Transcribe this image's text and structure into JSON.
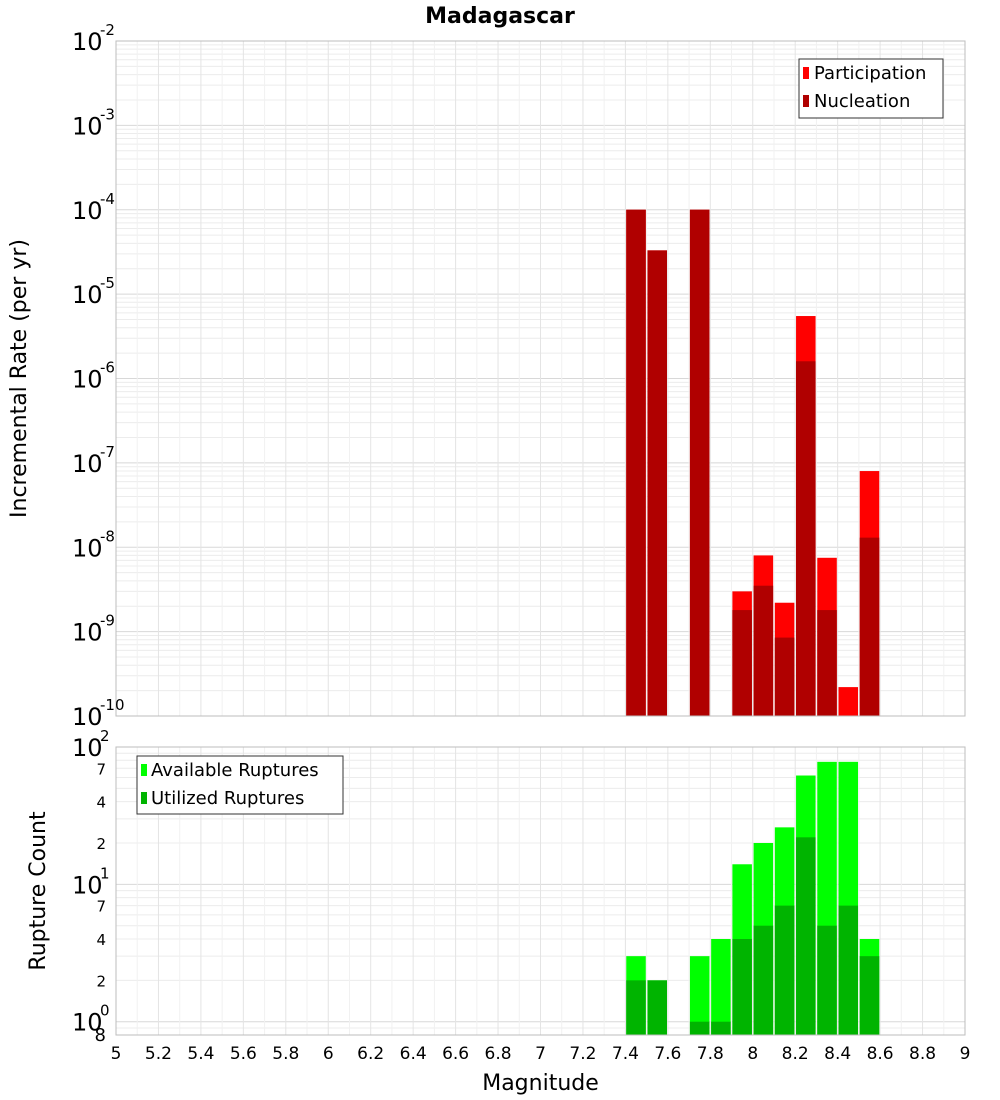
{
  "title": "Madagascar",
  "chart_data": [
    {
      "type": "bar",
      "ylabel": "Incremental Rate (per yr)",
      "yscale": "log",
      "ylim": [
        1e-10,
        0.01
      ],
      "y_ticks": [
        {
          "base": "10",
          "exp": "-2",
          "value": 0.01
        },
        {
          "base": "10",
          "exp": "-3",
          "value": 0.001
        },
        {
          "base": "10",
          "exp": "-4",
          "value": 0.0001
        },
        {
          "base": "10",
          "exp": "-5",
          "value": 1e-05
        },
        {
          "base": "10",
          "exp": "-6",
          "value": 1e-06
        },
        {
          "base": "10",
          "exp": "-7",
          "value": 1e-07
        },
        {
          "base": "10",
          "exp": "-8",
          "value": 1e-08
        },
        {
          "base": "10",
          "exp": "-9",
          "value": 1e-09
        },
        {
          "base": "10",
          "exp": "-10",
          "value": 1e-10
        }
      ],
      "legend_position": "top-right",
      "grid": true,
      "series": [
        {
          "name": "Participation",
          "color": "#ff0000",
          "x": [
            7.45,
            7.55,
            7.75,
            7.95,
            8.05,
            8.15,
            8.25,
            8.35,
            8.45,
            8.55
          ],
          "values": [
            0.0001,
            3.3e-05,
            0.0001,
            3e-09,
            8e-09,
            2.2e-09,
            5.5e-06,
            7.5e-09,
            2.2e-10,
            8e-08
          ]
        },
        {
          "name": "Nucleation",
          "color": "#b00000",
          "x": [
            7.45,
            7.55,
            7.75,
            7.95,
            8.05,
            8.15,
            8.25,
            8.35,
            8.55
          ],
          "values": [
            0.0001,
            3.3e-05,
            0.0001,
            1.8e-09,
            3.5e-09,
            8.5e-10,
            1.6e-06,
            1.8e-09,
            1.3e-08
          ]
        }
      ]
    },
    {
      "type": "bar",
      "ylabel": "Rupture Count",
      "xlabel": "Magnitude",
      "yscale": "log",
      "ylim": [
        0.8,
        100
      ],
      "y_ticks": [
        {
          "base": "10",
          "exp": "2",
          "value": 100
        },
        {
          "base": "10",
          "exp": "1",
          "value": 10
        },
        {
          "base": "10",
          "exp": "0",
          "value": 1
        }
      ],
      "y_minor_labels": [
        {
          "label": "7",
          "value": 70
        },
        {
          "label": "4",
          "value": 40
        },
        {
          "label": "2",
          "value": 20
        },
        {
          "label": "7",
          "value": 7
        },
        {
          "label": "4",
          "value": 4
        },
        {
          "label": "2",
          "value": 2
        },
        {
          "label": "8",
          "value": 0.8
        }
      ],
      "x_ticks": [
        "5",
        "5.2",
        "5.4",
        "5.6",
        "5.8",
        "6",
        "6.2",
        "6.4",
        "6.6",
        "6.8",
        "7",
        "7.2",
        "7.4",
        "7.6",
        "7.8",
        "8",
        "8.2",
        "8.4",
        "8.6",
        "8.8",
        "9"
      ],
      "xlim": [
        5,
        9
      ],
      "legend_position": "top-left",
      "grid": true,
      "series": [
        {
          "name": "Available Ruptures",
          "color": "#00ff00",
          "x": [
            7.45,
            7.55,
            7.75,
            7.85,
            7.95,
            8.05,
            8.15,
            8.25,
            8.35,
            8.45,
            8.55
          ],
          "values": [
            3,
            2,
            3,
            4,
            14,
            20,
            26,
            62,
            78,
            78,
            4
          ]
        },
        {
          "name": "Utilized Ruptures",
          "color": "#00b400",
          "x": [
            7.45,
            7.55,
            7.75,
            7.85,
            7.95,
            8.05,
            8.15,
            8.25,
            8.35,
            8.45,
            8.55
          ],
          "values": [
            2,
            2,
            1,
            1,
            4,
            5,
            7,
            22,
            5,
            7,
            3
          ]
        }
      ]
    }
  ]
}
